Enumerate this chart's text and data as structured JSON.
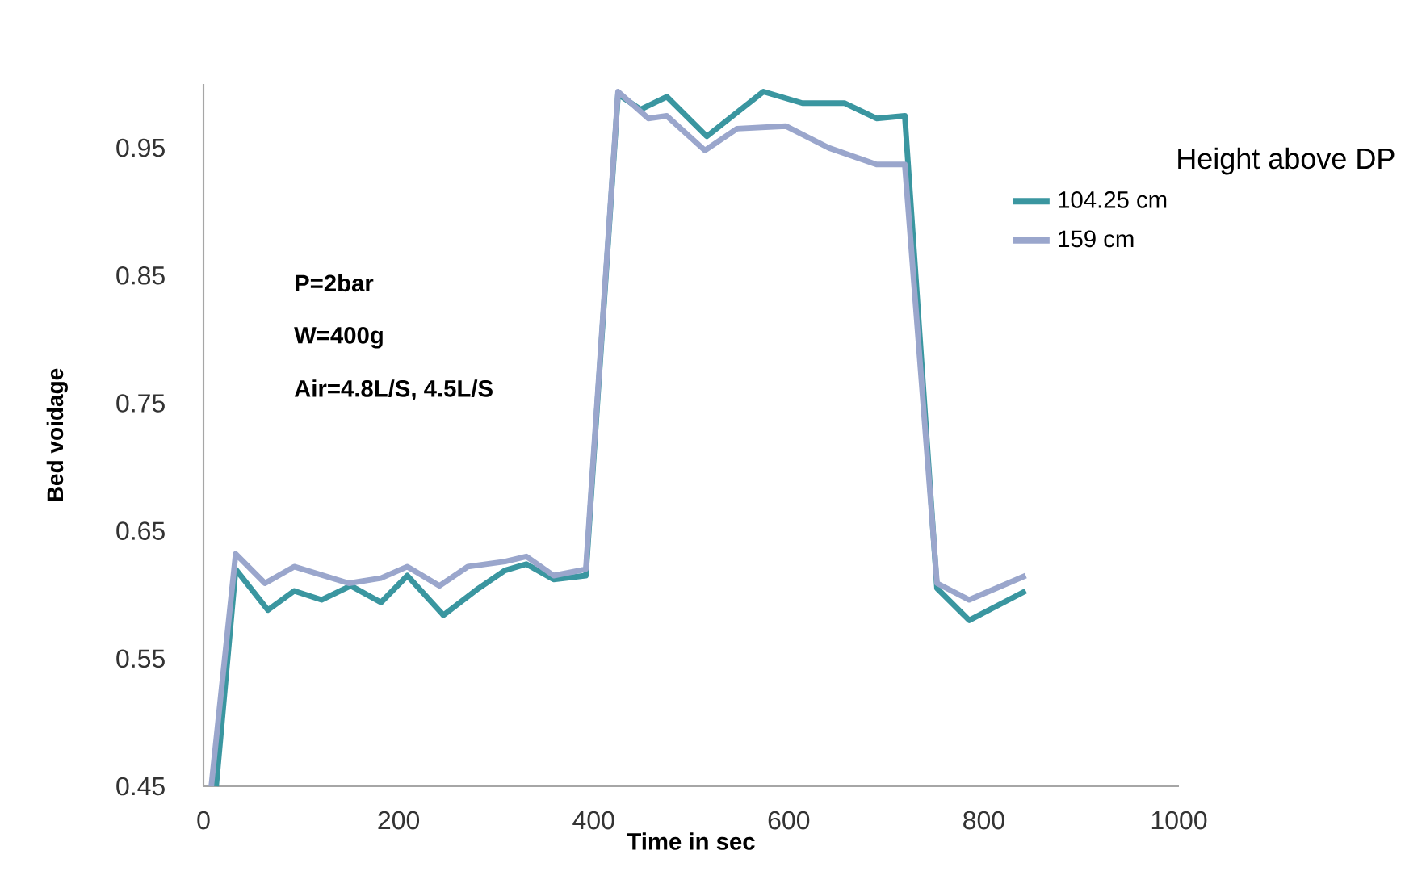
{
  "chart_data": {
    "type": "line",
    "xlabel": "Time in sec",
    "ylabel": "Bed voidage",
    "legend_title": "Height above DP",
    "legend": "top right",
    "marker": "none",
    "line_style": "solid",
    "grid": false,
    "xlim": [
      0,
      1000
    ],
    "xticks": [
      0,
      200,
      400,
      600,
      800,
      1000
    ],
    "ylim": [
      0.45,
      1.0
    ],
    "yticks": [
      0.45,
      0.55,
      0.65,
      0.75,
      0.85,
      0.95
    ],
    "annotations": [
      "P=2bar",
      "W=400g",
      "Air=4.8L/S, 4.5L/S"
    ],
    "series": [
      {
        "name": "104.25 cm",
        "color": "#3a96a0",
        "x": [
          13,
          33,
          66,
          93,
          121,
          151,
          182,
          209,
          246,
          282,
          309,
          331,
          359,
          392,
          425,
          448,
          475,
          516,
          574,
          614,
          657,
          690,
          719,
          752,
          785,
          843
        ],
        "values": [
          0.45,
          0.62,
          0.588,
          0.603,
          0.596,
          0.607,
          0.594,
          0.615,
          0.584,
          0.605,
          0.619,
          0.624,
          0.612,
          0.615,
          0.992,
          0.98,
          0.99,
          0.959,
          0.994,
          0.985,
          0.985,
          0.973,
          0.975,
          0.605,
          0.58,
          0.603
        ]
      },
      {
        "name": "159 cm",
        "color": "#9aa6cc",
        "x": [
          8,
          33,
          63,
          93,
          149,
          182,
          209,
          242,
          271,
          309,
          331,
          359,
          392,
          425,
          456,
          475,
          514,
          547,
          597,
          641,
          690,
          719,
          752,
          785,
          843
        ],
        "values": [
          0.45,
          0.632,
          0.609,
          0.622,
          0.609,
          0.613,
          0.622,
          0.607,
          0.622,
          0.626,
          0.63,
          0.615,
          0.62,
          0.994,
          0.973,
          0.975,
          0.948,
          0.965,
          0.967,
          0.95,
          0.937,
          0.937,
          0.609,
          0.596,
          0.615
        ]
      }
    ]
  }
}
